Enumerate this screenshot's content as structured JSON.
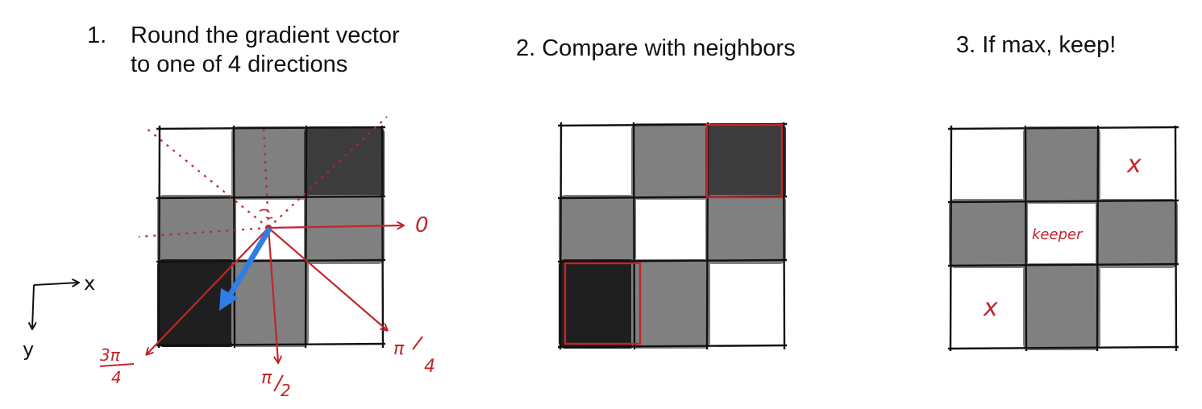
{
  "steps": {
    "step1_number": "1.",
    "step1_line1": "Round the gradient vector",
    "step1_line2": "to one of 4 directions",
    "step2": "2. Compare with neighbors",
    "step3": "3. If max, keep!"
  },
  "axes": {
    "x": "x",
    "y": "y"
  },
  "directions": {
    "d0": "0",
    "d1_num": "π",
    "d1_den": "4",
    "d2_num": "π",
    "d2_den": "2",
    "d3_num": "3π",
    "d3_den": "4"
  },
  "labels": {
    "keeper": "keeper",
    "reject1": "x",
    "reject2": "x"
  },
  "colors": {
    "dark": "#1f1f1f",
    "darkgray": "#3c3c3c",
    "gray": "#808080",
    "red": "#c0262c",
    "blue": "#2f7ee6"
  },
  "grids": {
    "grid1": [
      "white",
      "gray",
      "darkgray",
      "gray",
      "white",
      "gray",
      "dark",
      "gray",
      "white"
    ],
    "grid2": [
      "white",
      "gray",
      "darkgray",
      "gray",
      "white",
      "gray",
      "dark",
      "gray",
      "white"
    ],
    "grid3": [
      "white",
      "gray",
      "white",
      "gray",
      "white",
      "gray",
      "white",
      "gray",
      "white"
    ]
  }
}
